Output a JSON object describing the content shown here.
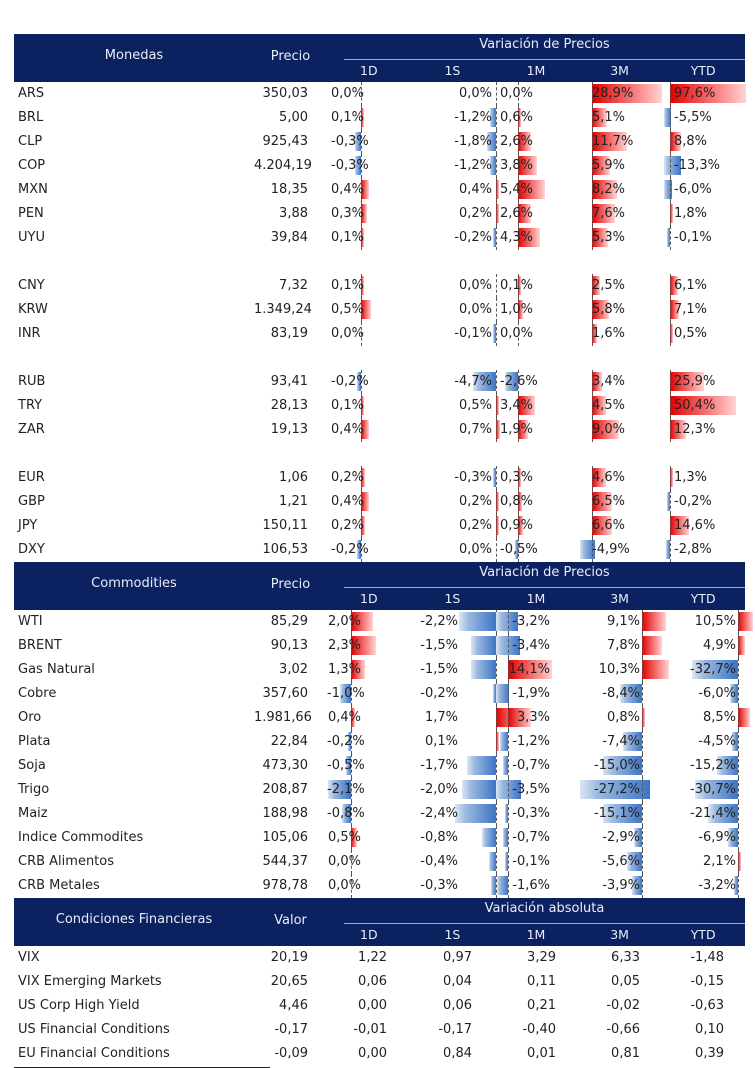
{
  "sections": [
    {
      "id": "monedas",
      "title": "Monedas",
      "price_label": "Precio",
      "group_label": "Variación de Precios",
      "bars": true,
      "columns": [
        "1D",
        "1S",
        "1M",
        "3M",
        "YTD"
      ],
      "groups": [
        [
          {
            "name": "ARS",
            "price": "350,03",
            "vals": [
              "0,0%",
              "0,0%",
              "0,0%",
              "28,9%",
              "97,6%"
            ]
          },
          {
            "name": "BRL",
            "price": "5,00",
            "vals": [
              "0,1%",
              "-1,2%",
              "0,6%",
              "5,1%",
              "-5,5%"
            ]
          },
          {
            "name": "CLP",
            "price": "925,43",
            "vals": [
              "-0,3%",
              "-1,8%",
              "2,6%",
              "11,7%",
              "8,8%"
            ]
          },
          {
            "name": "COP",
            "price": "4.204,19",
            "vals": [
              "-0,3%",
              "-1,2%",
              "3,8%",
              "5,9%",
              "-13,3%"
            ]
          },
          {
            "name": "MXN",
            "price": "18,35",
            "vals": [
              "0,4%",
              "0,4%",
              "5,4%",
              "8,2%",
              "-6,0%"
            ]
          },
          {
            "name": "PEN",
            "price": "3,88",
            "vals": [
              "0,3%",
              "0,2%",
              "2,6%",
              "7,6%",
              "1,8%"
            ]
          },
          {
            "name": "UYU",
            "price": "39,84",
            "vals": [
              "0,1%",
              "-0,2%",
              "4,3%",
              "5,3%",
              "-0,1%"
            ]
          }
        ],
        [
          {
            "name": "CNY",
            "price": "7,32",
            "vals": [
              "0,1%",
              "0,0%",
              "0,1%",
              "2,5%",
              "6,1%"
            ]
          },
          {
            "name": "KRW",
            "price": "1.349,24",
            "vals": [
              "0,5%",
              "0,0%",
              "1,0%",
              "5,8%",
              "7,1%"
            ]
          },
          {
            "name": "INR",
            "price": "83,19",
            "vals": [
              "0,0%",
              "-0,1%",
              "0,0%",
              "1,6%",
              "0,5%"
            ]
          }
        ],
        [
          {
            "name": "RUB",
            "price": "93,41",
            "vals": [
              "-0,2%",
              "-4,7%",
              "-2,6%",
              "3,4%",
              "25,9%"
            ]
          },
          {
            "name": "TRY",
            "price": "28,13",
            "vals": [
              "0,1%",
              "0,5%",
              "3,4%",
              "4,5%",
              "50,4%"
            ]
          },
          {
            "name": "ZAR",
            "price": "19,13",
            "vals": [
              "0,4%",
              "0,7%",
              "1,9%",
              "9,0%",
              "12,3%"
            ]
          }
        ],
        [
          {
            "name": "EUR",
            "price": "1,06",
            "vals": [
              "0,2%",
              "-0,3%",
              "0,3%",
              "4,6%",
              "1,3%"
            ]
          },
          {
            "name": "GBP",
            "price": "1,21",
            "vals": [
              "0,4%",
              "0,2%",
              "0,8%",
              "6,5%",
              "-0,2%"
            ]
          },
          {
            "name": "JPY",
            "price": "150,11",
            "vals": [
              "0,2%",
              "0,2%",
              "0,9%",
              "6,6%",
              "14,6%"
            ]
          },
          {
            "name": "DXY",
            "price": "106,53",
            "vals": [
              "-0,2%",
              "0,0%",
              "-0,5%",
              "-4,9%",
              "-2,8%"
            ]
          }
        ]
      ]
    },
    {
      "id": "commodities",
      "title": "Commodities",
      "price_label": "Precio",
      "group_label": "Variación de Precios",
      "bars": true,
      "columns": [
        "1D",
        "1S",
        "1M",
        "3M",
        "YTD"
      ],
      "groups": [
        [
          {
            "name": "WTI",
            "price": "85,29",
            "vals": [
              "2,0%",
              "-2,2%",
              "-3,2%",
              "9,1%",
              "10,5%"
            ]
          },
          {
            "name": "BRENT",
            "price": "90,13",
            "vals": [
              "2,3%",
              "-1,5%",
              "-3,4%",
              "7,8%",
              "4,9%"
            ]
          },
          {
            "name": "Gas Natural",
            "price": "3,02",
            "vals": [
              "1,3%",
              "-1,5%",
              "14,1%",
              "10,3%",
              "-32,7%"
            ]
          },
          {
            "name": "Cobre",
            "price": "357,60",
            "vals": [
              "-1,0%",
              "-0,2%",
              "-1,9%",
              "-8,4%",
              "-6,0%"
            ]
          },
          {
            "name": "Oro",
            "price": "1.981,66",
            "vals": [
              "0,4%",
              "1,7%",
              "3,3%",
              "0,8%",
              "8,5%"
            ]
          },
          {
            "name": "Plata",
            "price": "22,84",
            "vals": [
              "-0,2%",
              "0,1%",
              "-1,2%",
              "-7,4%",
              "-4,5%"
            ]
          },
          {
            "name": "Soja",
            "price": "473,30",
            "vals": [
              "-0,5%",
              "-1,7%",
              "-0,7%",
              "-15,0%",
              "-15,2%"
            ]
          },
          {
            "name": "Trigo",
            "price": "208,87",
            "vals": [
              "-2,1%",
              "-2,0%",
              "-3,5%",
              "-27,2%",
              "-30,7%"
            ]
          },
          {
            "name": "Maiz",
            "price": "188,98",
            "vals": [
              "-0,8%",
              "-2,4%",
              "-0,3%",
              "-15,1%",
              "-21,4%"
            ]
          },
          {
            "name": "Indice Commodites",
            "price": "105,06",
            "vals": [
              "0,5%",
              "-0,8%",
              "-0,7%",
              "-2,9%",
              "-6,9%"
            ]
          },
          {
            "name": "CRB Alimentos",
            "price": "544,37",
            "vals": [
              "0,0%",
              "-0,4%",
              "-0,1%",
              "-5,6%",
              "2,1%"
            ]
          },
          {
            "name": "CRB Metales",
            "price": "978,78",
            "vals": [
              "0,0%",
              "-0,3%",
              "-1,6%",
              "-3,9%",
              "-3,2%"
            ]
          }
        ]
      ]
    },
    {
      "id": "condiciones",
      "title": "Condiciones Financieras",
      "price_label": "Valor",
      "group_label": "Variación absoluta",
      "bars": false,
      "columns": [
        "1D",
        "1S",
        "1M",
        "3M",
        "YTD"
      ],
      "groups": [
        [
          {
            "name": "VIX",
            "price": "20,19",
            "vals": [
              "1,22",
              "0,97",
              "3,29",
              "6,33",
              "-1,48"
            ]
          },
          {
            "name": "VIX Emerging Markets",
            "price": "20,65",
            "vals": [
              "0,06",
              "0,04",
              "0,11",
              "0,05",
              "-0,15"
            ]
          },
          {
            "name": "US Corp High Yield",
            "price": "4,46",
            "vals": [
              "0,00",
              "0,06",
              "0,21",
              "-0,02",
              "-0,63"
            ]
          },
          {
            "name": "US Financial Conditions",
            "price": "-0,17",
            "vals": [
              "-0,01",
              "-0,17",
              "-0,40",
              "-0,66",
              "0,10"
            ]
          },
          {
            "name": "EU Financial Conditions",
            "price": "-0,09",
            "vals": [
              "0,00",
              "0,84",
              "0,01",
              "0,81",
              "0,39"
            ]
          }
        ]
      ]
    }
  ],
  "colors": {
    "header_bg": "#0c2160",
    "positive": "#e00000",
    "negative": "#3c74c4"
  }
}
